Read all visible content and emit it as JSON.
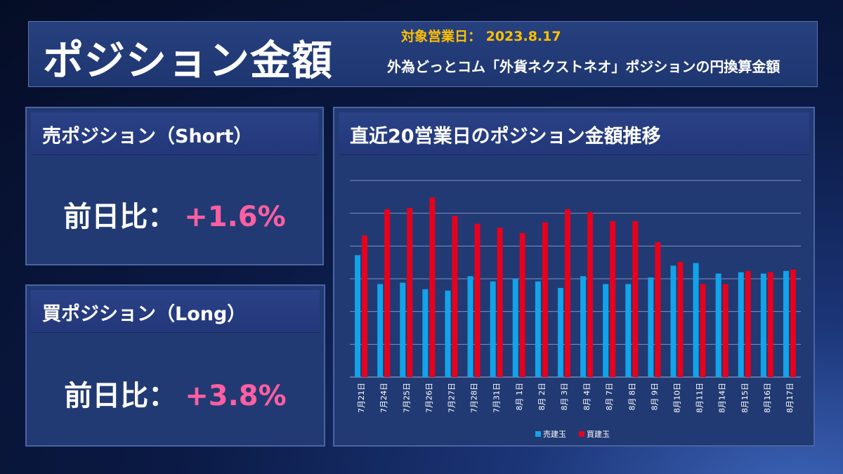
{
  "header": {
    "title": "ポジション金額",
    "target_date": "対象営業日： 2023.8.17",
    "subtitle": "外為どっとコム「外貨ネクストネオ」ポジションの円換算金額"
  },
  "short_panel": {
    "title": "売ポジション（Short）",
    "ratio_label": "前日比：",
    "ratio_value": "+1.6%"
  },
  "long_panel": {
    "title": "買ポジション（Long）",
    "ratio_label": "前日比：",
    "ratio_value": "+3.8%"
  },
  "chart_panel": {
    "title": "直近20営業日のポジション金額推移"
  },
  "colors": {
    "short": "#12a3e8",
    "long": "#e8001c",
    "accent_date": "#ffc000",
    "accent_ratio": "#ff5fa2"
  },
  "chart_data": {
    "type": "bar",
    "title": "直近20営業日のポジション金額推移",
    "categories": [
      "7月21日",
      "7月24日",
      "7月25日",
      "7月26日",
      "7月27日",
      "7月28日",
      "7月31日",
      "8月 1日",
      "8月 2日",
      "8月 3日",
      "8月 4日",
      "8月 7日",
      "8月 8日",
      "8月 9日",
      "8月10日",
      "8月11日",
      "8月14日",
      "8月15日",
      "8月16日",
      "8月17日"
    ],
    "series": [
      {
        "name": "売建玉",
        "values": [
          0.93,
          0.71,
          0.72,
          0.67,
          0.66,
          0.77,
          0.73,
          0.75,
          0.73,
          0.68,
          0.77,
          0.71,
          0.71,
          0.76,
          0.85,
          0.87,
          0.79,
          0.8,
          0.79,
          0.81
        ]
      },
      {
        "name": "買建玉",
        "values": [
          1.08,
          1.28,
          1.29,
          1.37,
          1.23,
          1.17,
          1.14,
          1.1,
          1.18,
          1.28,
          1.26,
          1.19,
          1.19,
          1.03,
          0.88,
          0.71,
          0.71,
          0.81,
          0.8,
          0.82
        ]
      }
    ],
    "ylim": [
      0,
      1.5
    ],
    "grid": true,
    "legend": "bottom"
  }
}
